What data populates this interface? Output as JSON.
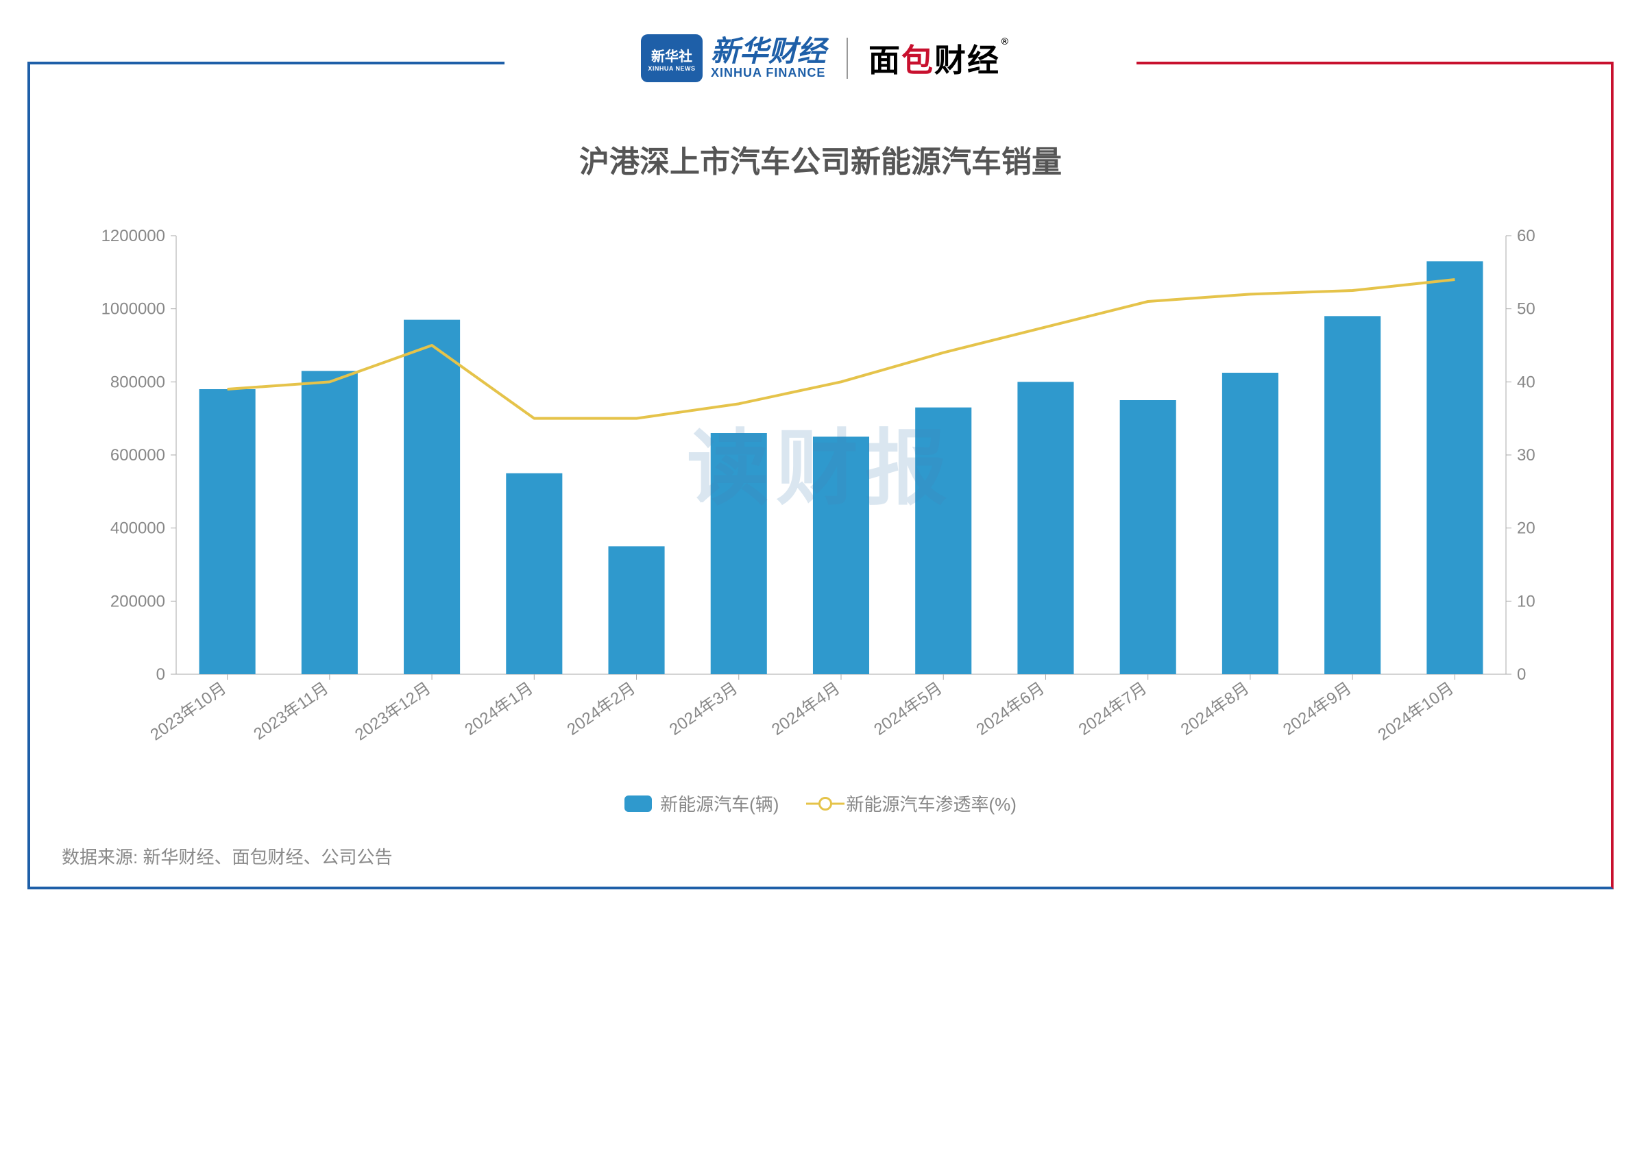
{
  "header": {
    "xinhua_badge_cn": "新华社",
    "xinhua_badge_en": "XINHUA NEWS",
    "xinhua_finance_cn": "新华财经",
    "xinhua_finance_en": "XINHUA FINANCE",
    "mbcj_prefix": "面",
    "mbcj_red": "包",
    "mbcj_suffix": "财经",
    "reg_mark": "®"
  },
  "chart": {
    "type": "bar-line-combo",
    "title": "沪港深上市汽车公司新能源汽车销量",
    "watermark": "读财报",
    "categories": [
      "2023年10月",
      "2023年11月",
      "2023年12月",
      "2024年1月",
      "2024年2月",
      "2024年3月",
      "2024年4月",
      "2024年5月",
      "2024年6月",
      "2024年7月",
      "2024年8月",
      "2024年9月",
      "2024年10月"
    ],
    "bar_series": {
      "name": "新能源汽车(辆)",
      "values": [
        780000,
        830000,
        970000,
        550000,
        350000,
        660000,
        650000,
        730000,
        800000,
        750000,
        825000,
        980000,
        1130000
      ],
      "color": "#2f99cd"
    },
    "line_series": {
      "name": "新能源汽车渗透率(%)",
      "values": [
        39,
        40,
        45,
        35,
        35,
        37,
        40,
        44,
        47.5,
        51,
        52,
        52.5,
        54
      ],
      "color": "#e5c34a",
      "line_width": 4,
      "marker": "none"
    },
    "y_left": {
      "min": 0,
      "max": 1200000,
      "ticks": [
        0,
        200000,
        400000,
        600000,
        800000,
        1000000,
        1200000
      ]
    },
    "y_right": {
      "min": 0,
      "max": 60,
      "ticks": [
        0,
        10,
        20,
        30,
        40,
        50,
        60
      ]
    },
    "bar_width_ratio": 0.55,
    "background_color": "#ffffff",
    "axis_color": "#aaaaaa",
    "tick_color": "#aaaaaa",
    "label_color": "#888888",
    "title_fontsize": 44,
    "axis_fontsize": 24,
    "x_label_rotation": -35
  },
  "legend": {
    "bar_label": "新能源汽车(辆)",
    "line_label": "新能源汽车渗透率(%)"
  },
  "source": "数据来源: 新华财经、面包财经、公司公告",
  "frame": {
    "left_color": "#1e5fa8",
    "right_color": "#c8102e"
  }
}
